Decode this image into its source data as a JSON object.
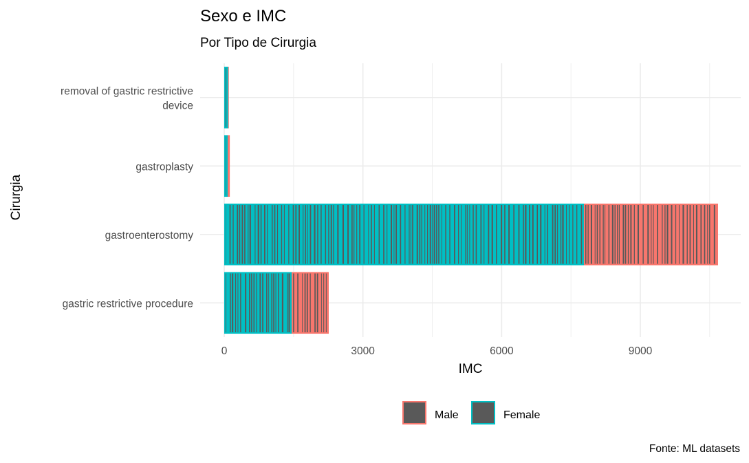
{
  "chart_data": {
    "type": "bar",
    "orientation": "horizontal",
    "stacked": true,
    "title": "Sexo e IMC",
    "subtitle": "Por Tipo de Cirurgia",
    "xlabel": "IMC",
    "ylabel": "Cirurgia",
    "caption": "Fonte: ML datasets",
    "categories": [
      "removal of gastric restrictive device",
      "gastroplasty",
      "gastroenterostomy",
      "gastric restrictive procedure"
    ],
    "category_label_lines": [
      [
        "removal of gastric restrictive",
        "device"
      ],
      [
        "gastroplasty"
      ],
      [
        "gastroenterostomy"
      ],
      [
        "gastric restrictive procedure"
      ]
    ],
    "series": [
      {
        "name": "Female",
        "values": [
          85,
          75,
          7780,
          1460
        ]
      },
      {
        "name": "Male",
        "values": [
          15,
          45,
          2900,
          800
        ]
      }
    ],
    "xlim": [
      0,
      10700
    ],
    "xticks": [
      0,
      3000,
      6000,
      9000
    ],
    "xtick_labels": [
      "0",
      "3000",
      "6000",
      "9000"
    ],
    "grid": true,
    "legend_position": "bottom",
    "colors": {
      "Female": "#00BFC4",
      "Male": "#F8766D",
      "fill": "#595959",
      "grid": "#ebebeb"
    }
  }
}
